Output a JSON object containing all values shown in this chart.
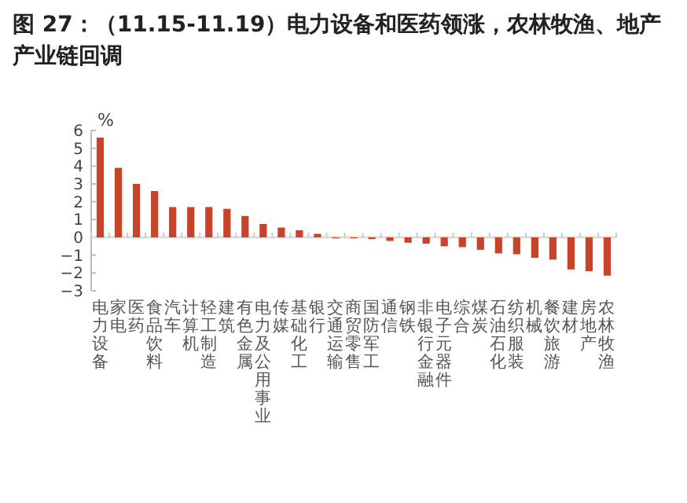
{
  "chart_data": {
    "type": "bar",
    "title": "图 27：（11.15-11.19）电力设备和医药领涨，农林牧渔、地产产业链回调",
    "ylabel": "%",
    "categories": [
      "电力设备",
      "家电",
      "医药",
      "食品饮料",
      "汽车",
      "计算机",
      "轻工制造",
      "建筑",
      "有色金属",
      "电力及公用事业",
      "传媒",
      "基础化工",
      "银行",
      "交通运输",
      "商贸零售",
      "国防军工",
      "通信",
      "钢铁",
      "非银行金融",
      "电子元器件",
      "综合",
      "煤炭",
      "石油石化",
      "纺织服装",
      "机械",
      "餐饮旅游",
      "建材",
      "房地产",
      "农林牧渔"
    ],
    "values": [
      5.6,
      3.9,
      3.0,
      2.6,
      1.7,
      1.7,
      1.7,
      1.6,
      1.2,
      0.75,
      0.55,
      0.4,
      0.2,
      -0.05,
      -0.05,
      -0.1,
      -0.2,
      -0.3,
      -0.35,
      -0.5,
      -0.55,
      -0.7,
      -0.9,
      -0.95,
      -1.15,
      -1.25,
      -1.8,
      -1.9,
      -2.15
    ],
    "color": "#c9432a",
    "ylim": [
      -3,
      6
    ],
    "yticks": [
      -3,
      -2,
      -1,
      0,
      1,
      2,
      3,
      4,
      5,
      6
    ]
  }
}
